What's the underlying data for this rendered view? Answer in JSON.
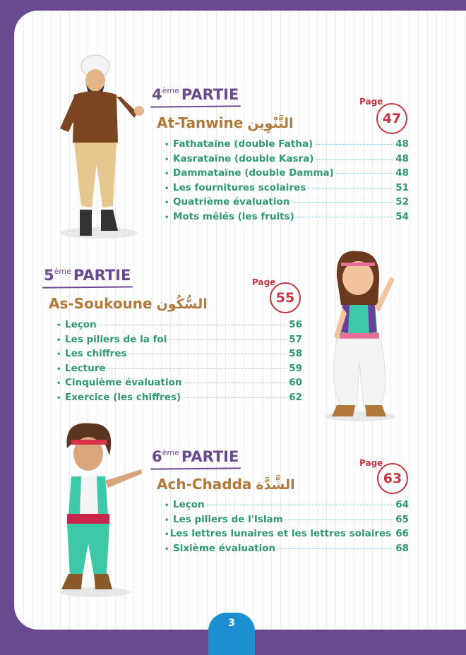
{
  "sections": [
    {
      "partie_num": "4",
      "partie_sup": "ème",
      "partie_label": "PARTIE",
      "title": "At-Tanwine",
      "title_ar": "التَّنْوِين",
      "page_label": "Page",
      "page": "47",
      "items": [
        {
          "label": "Fathataïne (double Fatha)",
          "page": "48"
        },
        {
          "label": "Kasrataïne (double Kasra)",
          "page": "48"
        },
        {
          "label": "Dammataïne (double Damma)",
          "page": "48"
        },
        {
          "label": "Les fournitures scolaires",
          "page": "51"
        },
        {
          "label": "Quatrième évaluation",
          "page": "52"
        },
        {
          "label": "Mots mêlés (les fruits)",
          "page": "54"
        }
      ]
    },
    {
      "partie_num": "5",
      "partie_sup": "ème",
      "partie_label": "PARTIE",
      "title": "As-Soukoune",
      "title_ar": "السُّكُون",
      "page_label": "Page",
      "page": "55",
      "items": [
        {
          "label": "Leçon",
          "page": "56"
        },
        {
          "label": "Les piliers de la foi",
          "page": "57"
        },
        {
          "label": "Les chiffres",
          "page": "58"
        },
        {
          "label": "Lecture",
          "page": "59"
        },
        {
          "label": "Cinquième évaluation",
          "page": "60"
        },
        {
          "label": "Exercice (les chiffres)",
          "page": "62"
        }
      ]
    },
    {
      "partie_num": "6",
      "partie_sup": "ème",
      "partie_label": "PARTIE",
      "title": "Ach-Chadda",
      "title_ar": "الشَّدَّة",
      "page_label": "Page",
      "page": "63",
      "items": [
        {
          "label": "Leçon",
          "page": "64"
        },
        {
          "label": "Les piliers de l'Islam",
          "page": "65"
        },
        {
          "label": "Les lettres lunaires et les lettres solaires",
          "page": "66"
        },
        {
          "label": "Sixième évaluation",
          "page": "68"
        }
      ]
    }
  ],
  "page_number": "3",
  "colors": {
    "frame": "#6a4a8e",
    "partie": "#6a4a8e",
    "heading": "#b07a3c",
    "page_circle": "#c53640",
    "items": "#2f9a72",
    "page_tab": "#1c8fd0"
  }
}
